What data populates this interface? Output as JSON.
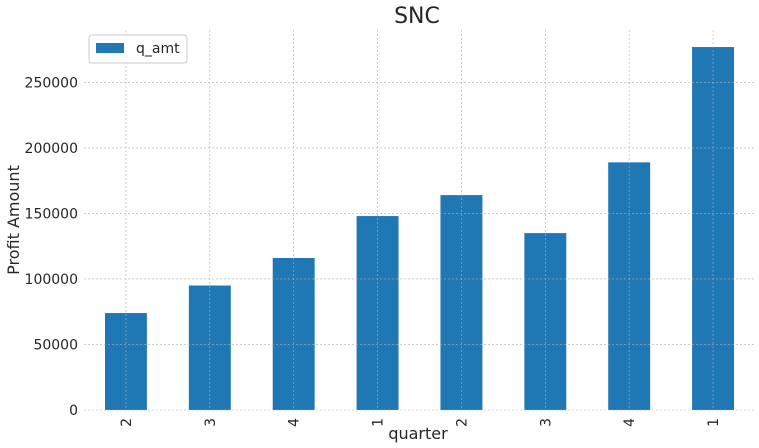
{
  "chart_data": {
    "type": "bar",
    "title": "SNC",
    "xlabel": "quarter",
    "ylabel": "Profit Amount",
    "categories": [
      "2",
      "3",
      "4",
      "1",
      "2",
      "3",
      "4",
      "1"
    ],
    "series": [
      {
        "name": "q_amt",
        "values": [
          74000,
          95000,
          116000,
          148000,
          164000,
          135000,
          189000,
          277000
        ]
      }
    ],
    "ylim": [
      0,
      290000
    ],
    "yticks": [
      0,
      50000,
      100000,
      150000,
      200000,
      250000
    ],
    "ytick_labels": [
      "0",
      "50000",
      "100000",
      "150000",
      "200000",
      "250000"
    ],
    "grid": true,
    "legend_position": "top-left",
    "colors": {
      "bar": "#1f77b4",
      "grid": "#b0b0b0"
    }
  }
}
